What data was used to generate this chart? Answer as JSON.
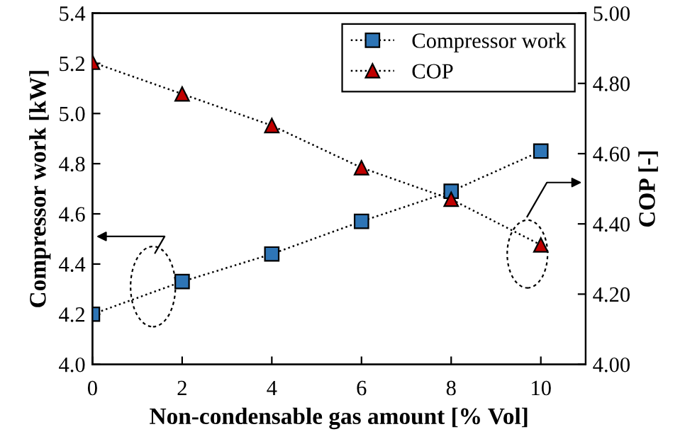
{
  "chart_data": {
    "type": "line",
    "xlabel": "Non-condensable gas amount [% Vol]",
    "ylabel": "Compressor work [kW]",
    "y2label": "COP [-]",
    "x": [
      0,
      2,
      4,
      6,
      8,
      10
    ],
    "series": [
      {
        "name": "Compressor work",
        "color": "#2e75b6",
        "marker": "square",
        "line_style": "dotted",
        "values": [
          4.2,
          4.33,
          4.44,
          4.57,
          4.69,
          4.85
        ]
      },
      {
        "name": "COP",
        "color": "#c00000",
        "marker": "triangle",
        "line_style": "dotted",
        "axis": "y2",
        "values": [
          4.86,
          4.77,
          4.68,
          4.56,
          4.47,
          4.34
        ]
      }
    ],
    "xlim": [
      0,
      11
    ],
    "xticks": [
      0,
      2,
      4,
      6,
      8,
      10
    ],
    "ylim": [
      4.0,
      5.4
    ],
    "yticks": [
      {
        "value": 4.0,
        "label": "4.0"
      },
      {
        "value": 4.2,
        "label": "4.2"
      },
      {
        "value": 4.4,
        "label": "4.4"
      },
      {
        "value": 4.6,
        "label": "4.6"
      },
      {
        "value": 4.8,
        "label": "4.8"
      },
      {
        "value": 5.0,
        "label": "5.0"
      },
      {
        "value": 5.2,
        "label": "5.2"
      },
      {
        "value": 5.4,
        "label": "5.4"
      }
    ],
    "y2lim": [
      4.0,
      5.0
    ],
    "y2ticks": [
      {
        "value": 4.0,
        "label": "4.00"
      },
      {
        "value": 4.2,
        "label": "4.20"
      },
      {
        "value": 4.4,
        "label": "4.40"
      },
      {
        "value": 4.6,
        "label": "4.60"
      },
      {
        "value": 4.8,
        "label": "4.80"
      },
      {
        "value": 5.0,
        "label": "5.00"
      }
    ],
    "grid": false,
    "legend": "top right"
  }
}
